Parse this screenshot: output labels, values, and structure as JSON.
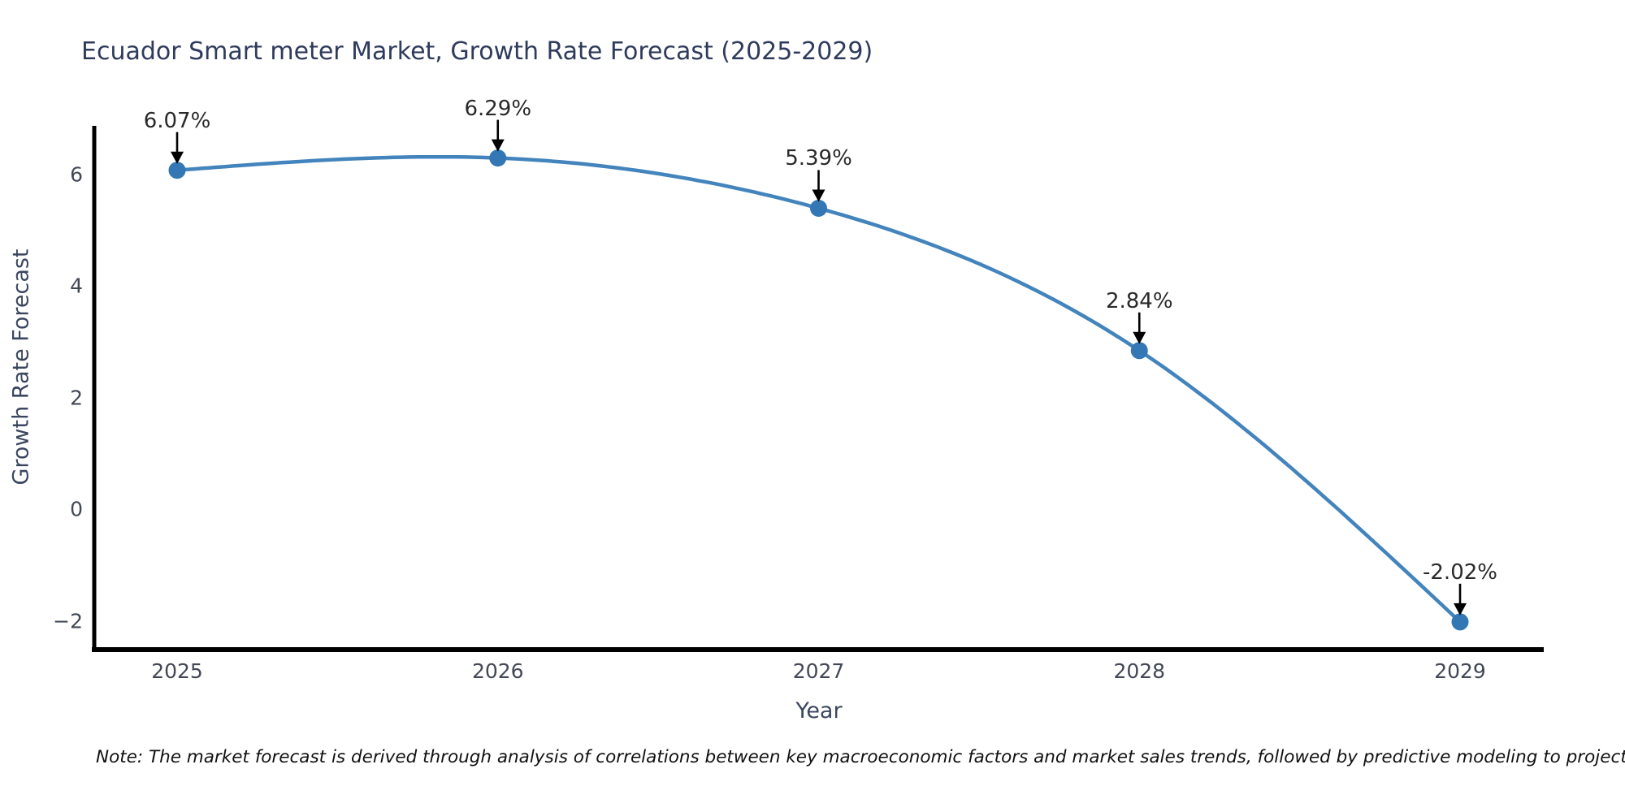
{
  "title": "Ecuador Smart meter Market, Growth Rate Forecast (2025-2029)",
  "note": "Note: The market forecast is derived through analysis of correlations between key macroeconomic factors and market sales trends, followed by predictive modeling to project future sales",
  "chart_data": {
    "type": "line",
    "title": "Ecuador Smart meter Market, Growth Rate Forecast (2025-2029)",
    "xlabel": "Year",
    "ylabel": "Growth Rate Forecast",
    "categories": [
      "2025",
      "2026",
      "2027",
      "2028",
      "2029"
    ],
    "series": [
      {
        "name": "Growth Rate Forecast",
        "values": [
          6.07,
          6.29,
          5.39,
          2.84,
          -2.02
        ]
      }
    ],
    "data_labels": [
      "6.07%",
      "6.29%",
      "5.39%",
      "2.84%",
      "-2.02%"
    ],
    "yticks": [
      6,
      4,
      2,
      0,
      -2
    ],
    "ylim": [
      -2.5,
      6.9
    ],
    "grid": false,
    "legend_position": "none",
    "smooth": true,
    "annotation_style": "down-arrow",
    "colors": {
      "line": "#4384bd",
      "marker": "#3377b4",
      "axis": "#000000",
      "annotation_arrow": "#000000",
      "title_text": "#2f3b5c",
      "tick_text": "#434857"
    }
  }
}
